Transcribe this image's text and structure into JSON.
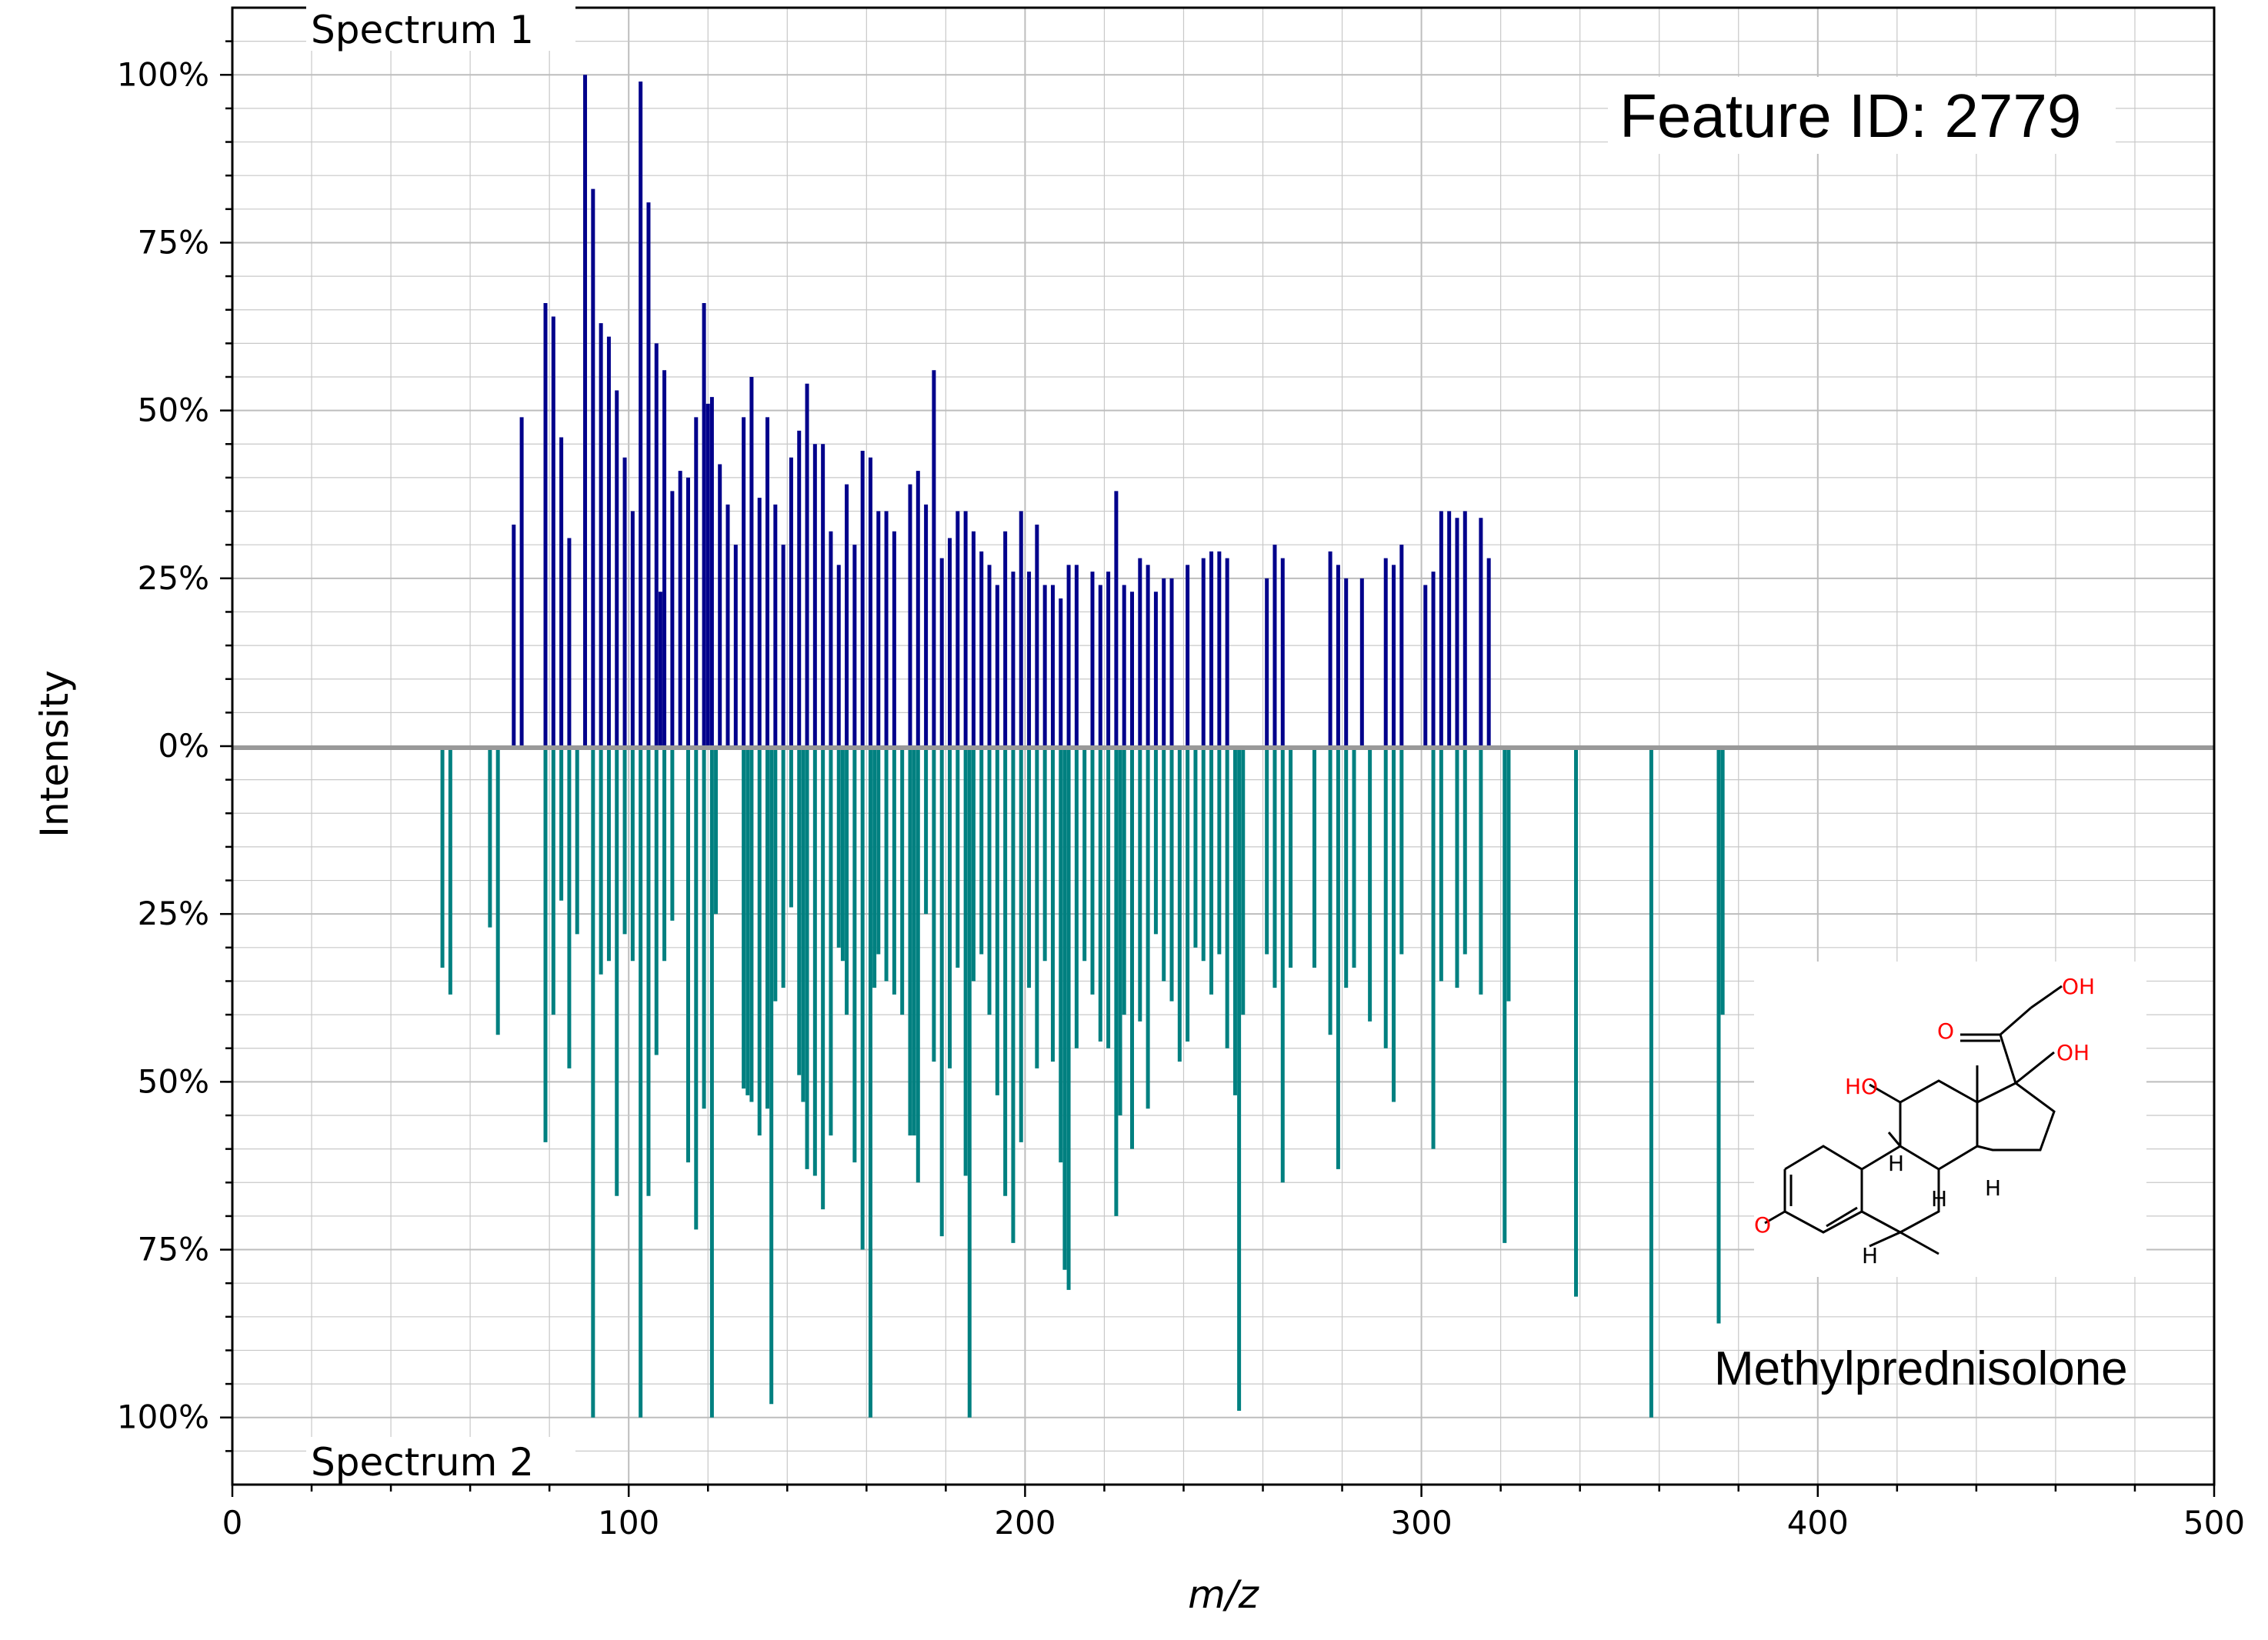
{
  "chart_data": {
    "type": "bar",
    "subtype": "mirror-spectrum",
    "xlabel": "m/z",
    "ylabel": "Intensity",
    "xlim": [
      0,
      500
    ],
    "ylim": [
      -110,
      110
    ],
    "x_ticks": [
      0,
      100,
      200,
      300,
      400,
      500
    ],
    "y_ticks": [
      {
        "value": 100,
        "label": "100%"
      },
      {
        "value": 75,
        "label": "75%"
      },
      {
        "value": 50,
        "label": "50%"
      },
      {
        "value": 25,
        "label": "25%"
      },
      {
        "value": 0,
        "label": "0%"
      },
      {
        "value": -25,
        "label": "25%"
      },
      {
        "value": -50,
        "label": "50%"
      },
      {
        "value": -75,
        "label": "75%"
      },
      {
        "value": -100,
        "label": "100%"
      }
    ],
    "grid": true,
    "annotations": {
      "top_label": "Spectrum 1",
      "bottom_label": "Spectrum 2",
      "feature_id": "Feature ID: 2779",
      "compound": "Methylprednisolone"
    },
    "colors": {
      "spectrum1": "#00008b",
      "spectrum2": "#008080",
      "baseline": "#999999",
      "grid": "#c8c8c8"
    },
    "series": [
      {
        "name": "Spectrum 1",
        "direction": "up",
        "x": [
          71,
          73,
          79,
          81,
          83,
          85,
          89,
          91,
          93,
          95,
          97,
          99,
          101,
          103,
          105,
          107,
          108,
          109,
          111,
          113,
          115,
          117,
          119,
          120,
          121,
          123,
          125,
          127,
          129,
          131,
          133,
          135,
          137,
          139,
          141,
          143,
          145,
          147,
          149,
          151,
          153,
          155,
          157,
          159,
          161,
          163,
          165,
          167,
          171,
          173,
          175,
          177,
          179,
          181,
          183,
          185,
          187,
          189,
          191,
          193,
          195,
          197,
          199,
          201,
          203,
          205,
          207,
          209,
          211,
          213,
          217,
          219,
          221,
          223,
          225,
          227,
          229,
          231,
          233,
          235,
          237,
          241,
          245,
          247,
          249,
          251,
          261,
          263,
          265,
          277,
          279,
          281,
          285,
          291,
          293,
          295,
          301,
          303,
          305,
          307,
          309,
          311,
          315,
          317
        ],
        "values": [
          33,
          49,
          66,
          64,
          46,
          31,
          100,
          83,
          63,
          61,
          53,
          43,
          35,
          99,
          81,
          60,
          23,
          56,
          38,
          41,
          40,
          49,
          66,
          51,
          52,
          42,
          36,
          30,
          49,
          55,
          37,
          49,
          36,
          30,
          43,
          47,
          54,
          45,
          45,
          32,
          27,
          39,
          30,
          44,
          43,
          35,
          35,
          32,
          39,
          41,
          36,
          56,
          28,
          31,
          35,
          35,
          32,
          29,
          27,
          24,
          32,
          26,
          35,
          26,
          33,
          24,
          24,
          22,
          27,
          27,
          26,
          24,
          26,
          38,
          24,
          23,
          28,
          27,
          23,
          25,
          25,
          27,
          28,
          29,
          29,
          28,
          25,
          30,
          28,
          29,
          27,
          25,
          25,
          28,
          27,
          30,
          24,
          26,
          35,
          35,
          34,
          35,
          34,
          28
        ]
      },
      {
        "name": "Spectrum 2",
        "direction": "down",
        "x": [
          53,
          55,
          65,
          67,
          79,
          81,
          83,
          85,
          87,
          91,
          93,
          95,
          97,
          99,
          101,
          103,
          105,
          107,
          109,
          111,
          115,
          117,
          119,
          121,
          122,
          129,
          130,
          131,
          133,
          135,
          136,
          137,
          139,
          141,
          143,
          144,
          145,
          147,
          149,
          151,
          153,
          154,
          155,
          157,
          159,
          161,
          162,
          163,
          165,
          167,
          169,
          171,
          172,
          173,
          175,
          177,
          179,
          181,
          183,
          185,
          186,
          187,
          189,
          191,
          193,
          195,
          197,
          199,
          201,
          203,
          205,
          207,
          209,
          210,
          211,
          213,
          215,
          217,
          219,
          221,
          223,
          224,
          225,
          227,
          229,
          231,
          233,
          235,
          237,
          239,
          241,
          243,
          245,
          247,
          249,
          251,
          253,
          254,
          255,
          261,
          263,
          265,
          267,
          273,
          277,
          279,
          281,
          283,
          287,
          291,
          293,
          295,
          303,
          305,
          309,
          311,
          315,
          321,
          322,
          339,
          358,
          375,
          376
        ],
        "values": [
          33,
          37,
          27,
          43,
          59,
          40,
          23,
          48,
          28,
          100,
          34,
          32,
          67,
          28,
          32,
          100,
          67,
          46,
          32,
          26,
          62,
          72,
          54,
          100,
          25,
          51,
          52,
          53,
          58,
          54,
          98,
          38,
          36,
          24,
          49,
          53,
          63,
          64,
          69,
          58,
          30,
          32,
          40,
          62,
          75,
          100,
          36,
          31,
          35,
          37,
          40,
          58,
          58,
          65,
          25,
          47,
          73,
          48,
          33,
          64,
          100,
          35,
          31,
          40,
          52,
          67,
          74,
          59,
          36,
          48,
          32,
          47,
          62,
          78,
          81,
          45,
          32,
          37,
          44,
          45,
          70,
          55,
          40,
          60,
          41,
          54,
          28,
          35,
          38,
          47,
          44,
          30,
          32,
          37,
          31,
          45,
          52,
          99,
          40,
          31,
          36,
          65,
          33,
          33,
          43,
          63,
          36,
          33,
          41,
          45,
          53,
          31,
          60,
          35,
          36,
          31,
          37,
          74,
          38,
          82,
          100,
          86,
          40
        ]
      }
    ]
  }
}
